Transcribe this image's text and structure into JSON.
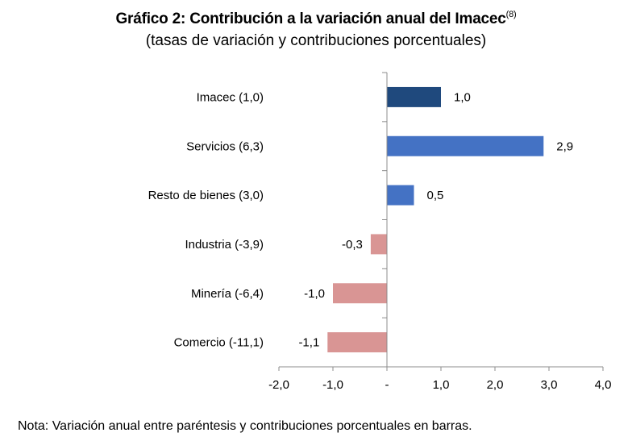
{
  "chart_data": {
    "type": "bar",
    "orientation": "horizontal",
    "title": "Gráfico 2: Contribución a la variación anual del Imacec",
    "title_superscript": "(8)",
    "subtitle": "(tasas de variación y contribuciones porcentuales)",
    "xlabel": "",
    "ylabel": "",
    "xlim": [
      -2.0,
      4.0
    ],
    "x_ticks": [
      -2,
      -1,
      0,
      1,
      2,
      3,
      4
    ],
    "x_tick_labels": [
      "-2,0",
      "-1,0",
      "-",
      "1,0",
      "2,0",
      "3,0",
      "4,0"
    ],
    "grid": false,
    "legend": "none",
    "categories": [
      "Imacec (1,0)",
      "Servicios (6,3)",
      "Resto de bienes (3,0)",
      "Industria (-3,9)",
      "Minería (-6,4)",
      "Comercio (-11,1)"
    ],
    "values": [
      1.0,
      2.9,
      0.5,
      -0.3,
      -1.0,
      -1.1
    ],
    "data_labels": [
      "1,0",
      "2,9",
      "0,5",
      "-0,3",
      "-1,0",
      "-1,1"
    ],
    "bar_colors": [
      "#1f497d",
      "#4472c4",
      "#4472c4",
      "#d99594",
      "#d99594",
      "#d99594"
    ],
    "note": "Nota: Variación anual entre paréntesis y contribuciones porcentuales en barras."
  }
}
